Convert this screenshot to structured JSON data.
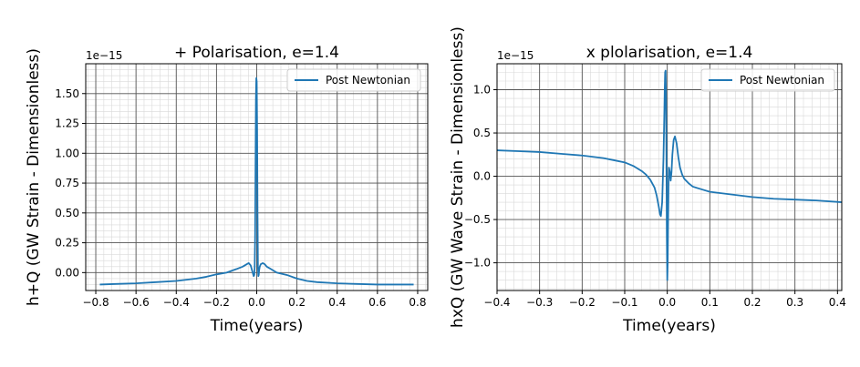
{
  "chart_data": [
    {
      "type": "line",
      "title": "+ Polarisation, e=1.4",
      "xlabel": "Time(years)",
      "ylabel": "h+Q (GW Strain - Dimensionless)",
      "offset_text": "1e−15",
      "xlim": [
        -0.85,
        0.85
      ],
      "ylim": [
        -0.15,
        1.75
      ],
      "xticks": [
        -0.8,
        -0.6,
        -0.4,
        -0.2,
        0.0,
        0.2,
        0.4,
        0.6,
        0.8
      ],
      "xtick_labels": [
        "−0.8",
        "−0.6",
        "−0.4",
        "−0.2",
        "0.0",
        "0.2",
        "0.4",
        "0.6",
        "0.8"
      ],
      "yticks": [
        0.0,
        0.25,
        0.5,
        0.75,
        1.0,
        1.25,
        1.5
      ],
      "ytick_labels": [
        "0.00",
        "0.25",
        "0.50",
        "0.75",
        "1.00",
        "1.25",
        "1.50"
      ],
      "grid": "major and minor",
      "legend": "top-right",
      "series": [
        {
          "name": "Post Newtonian",
          "color": "#1f77b4",
          "x": [
            -0.78,
            -0.7,
            -0.6,
            -0.5,
            -0.4,
            -0.3,
            -0.25,
            -0.2,
            -0.15,
            -0.1,
            -0.07,
            -0.05,
            -0.04,
            -0.03,
            -0.02,
            -0.015,
            -0.012,
            -0.01,
            -0.008,
            -0.006,
            -0.004,
            -0.002,
            0.0,
            0.002,
            0.004,
            0.006,
            0.008,
            0.01,
            0.012,
            0.015,
            0.02,
            0.03,
            0.04,
            0.05,
            0.07,
            0.1,
            0.15,
            0.2,
            0.25,
            0.3,
            0.4,
            0.5,
            0.6,
            0.7,
            0.78
          ],
          "y": [
            -0.1,
            -0.095,
            -0.09,
            -0.08,
            -0.07,
            -0.05,
            -0.035,
            -0.015,
            0.0,
            0.03,
            0.05,
            0.07,
            0.08,
            0.06,
            0.0,
            -0.03,
            -0.02,
            0.05,
            0.3,
            0.9,
            1.45,
            1.63,
            1.6,
            1.2,
            0.5,
            0.05,
            -0.03,
            -0.02,
            0.02,
            0.05,
            0.07,
            0.08,
            0.07,
            0.05,
            0.03,
            0.0,
            -0.02,
            -0.05,
            -0.07,
            -0.08,
            -0.09,
            -0.095,
            -0.1,
            -0.1,
            -0.1
          ]
        }
      ]
    },
    {
      "type": "line",
      "title": "x plolarisation, e=1.4",
      "xlabel": "Time(years)",
      "ylabel": "hxQ (GW Wave Strain - Dimensionless)",
      "offset_text": "1e−15",
      "xlim": [
        -0.4,
        0.41
      ],
      "ylim": [
        -1.32,
        1.3
      ],
      "xticks": [
        -0.4,
        -0.3,
        -0.2,
        -0.1,
        0.0,
        0.1,
        0.2,
        0.3,
        0.4
      ],
      "xtick_labels": [
        "−0.4",
        "−0.3",
        "−0.2",
        "−0.1",
        "0.0",
        "0.1",
        "0.2",
        "0.3",
        "0.4"
      ],
      "yticks": [
        -1.0,
        -0.5,
        0.0,
        0.5,
        1.0
      ],
      "ytick_labels": [
        "−1.0",
        "−0.5",
        "0.0",
        "0.5",
        "1.0"
      ],
      "grid": "major and minor",
      "legend": "top-right",
      "series": [
        {
          "name": "Post Newtonian",
          "color": "#1f77b4",
          "x": [
            -0.4,
            -0.35,
            -0.3,
            -0.25,
            -0.2,
            -0.15,
            -0.12,
            -0.1,
            -0.08,
            -0.06,
            -0.05,
            -0.04,
            -0.03,
            -0.025,
            -0.02,
            -0.017,
            -0.015,
            -0.012,
            -0.009,
            -0.007,
            -0.006,
            -0.005,
            -0.004,
            -0.003,
            -0.002,
            -0.001,
            0.0,
            0.001,
            0.002,
            0.003,
            0.004,
            0.006,
            0.008,
            0.01,
            0.012,
            0.015,
            0.018,
            0.022,
            0.026,
            0.03,
            0.035,
            0.04,
            0.05,
            0.06,
            0.08,
            0.1,
            0.15,
            0.2,
            0.25,
            0.3,
            0.35,
            0.41
          ],
          "y": [
            0.3,
            0.29,
            0.28,
            0.26,
            0.24,
            0.21,
            0.18,
            0.16,
            0.12,
            0.06,
            0.02,
            -0.04,
            -0.13,
            -0.22,
            -0.35,
            -0.44,
            -0.46,
            -0.3,
            0.2,
            0.7,
            1.0,
            1.2,
            1.22,
            0.9,
            0.2,
            -0.7,
            -1.2,
            -1.0,
            -0.5,
            -0.1,
            0.1,
            0.05,
            -0.05,
            0.05,
            0.25,
            0.42,
            0.46,
            0.38,
            0.22,
            0.1,
            0.02,
            -0.03,
            -0.08,
            -0.12,
            -0.15,
            -0.18,
            -0.21,
            -0.24,
            -0.26,
            -0.27,
            -0.28,
            -0.3
          ]
        }
      ]
    }
  ]
}
